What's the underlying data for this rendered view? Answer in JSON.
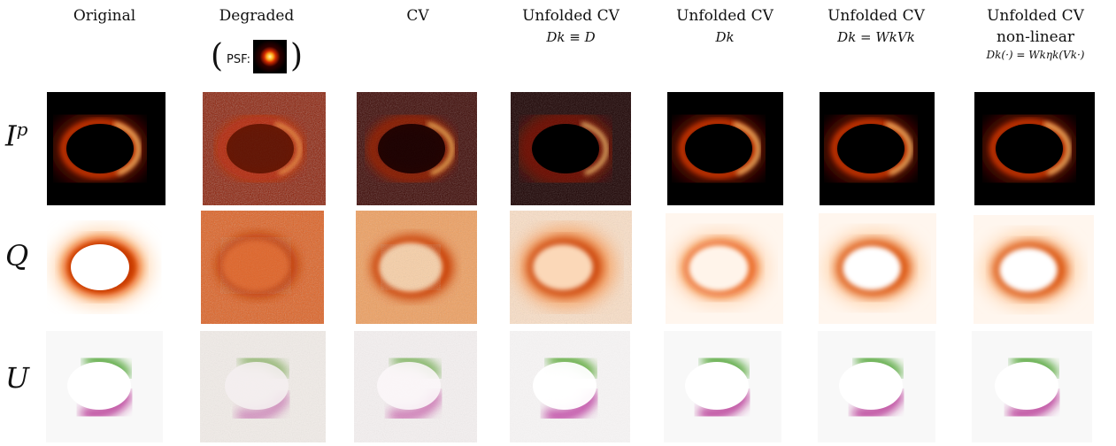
{
  "columns": [
    {
      "title": "Original",
      "sub": "",
      "sub2": ""
    },
    {
      "title": "Degraded",
      "sub": "",
      "sub2": ""
    },
    {
      "title": "CV",
      "sub": "",
      "sub2": ""
    },
    {
      "title": "Unfolded CV",
      "sub": "Dk ≡ D",
      "sub2": ""
    },
    {
      "title": "Unfolded CV",
      "sub": "Dk",
      "sub2": ""
    },
    {
      "title": "Unfolded CV",
      "sub": "Dk = WkVk",
      "sub2": ""
    },
    {
      "title": "Unfolded CV",
      "sub": "non-linear",
      "sub2": "Dk(·) = Wkηk(Vk·)"
    }
  ],
  "psf": {
    "open": "(",
    "label": "PSF:",
    "close": ")"
  },
  "rows": [
    {
      "base": "I",
      "sup": "p"
    },
    {
      "base": "Q",
      "sup": ""
    },
    {
      "base": "U",
      "sup": ""
    }
  ],
  "colors": {
    "ip_ring": "#ffd27a",
    "ip_dark": "#000000",
    "ip_noise": "#8a1800",
    "q_core": "#ffffff",
    "q_ring": "#c83a00",
    "q_bg": "#fff6ee",
    "u_green": "#3a9a1a",
    "u_magenta": "#b0208a",
    "u_bg": "#f8f8f8"
  }
}
